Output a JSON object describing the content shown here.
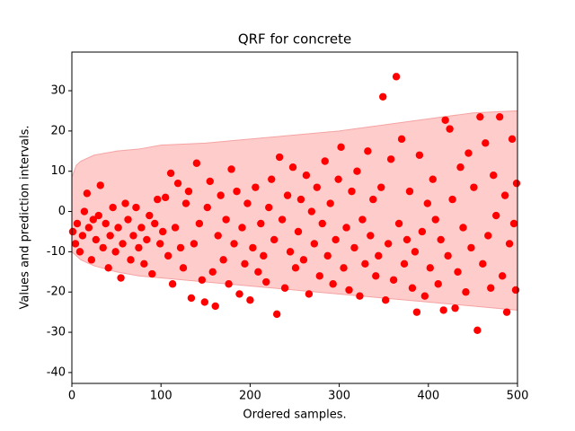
{
  "chart_data": {
    "type": "scatter",
    "title": "QRF for concrete",
    "x_label": "Ordered samples.",
    "y_label": "Values and prediction intervals.",
    "color": "#ff0000",
    "band_color": "#ffcccc",
    "band_edge_color": "#f5a3a3",
    "xlim": [
      0,
      500
    ],
    "xticks": [
      0,
      100,
      200,
      300,
      400,
      500
    ],
    "ylim": [
      -42.7,
      39.6
    ],
    "yticks": [
      -40,
      -30,
      -20,
      -10,
      0,
      10,
      20,
      30
    ],
    "band": {
      "x": [
        0,
        5,
        10,
        25,
        50,
        75,
        100,
        150,
        200,
        250,
        300,
        350,
        400,
        450,
        500
      ],
      "upper": [
        8.5,
        11.5,
        12.5,
        14,
        15,
        15.5,
        16.5,
        17,
        18,
        19,
        20,
        21.5,
        23,
        24.5,
        25
      ],
      "lower": [
        -10,
        -11,
        -12,
        -13.5,
        -15,
        -16,
        -16.5,
        -17.5,
        -18.5,
        -19.5,
        -20.5,
        -21.5,
        -22.5,
        -23.5,
        -24.5
      ]
    },
    "x": [
      1,
      4,
      6,
      9,
      12,
      14,
      17,
      19,
      22,
      24,
      27,
      30,
      32,
      35,
      38,
      41,
      43,
      46,
      49,
      52,
      55,
      57,
      60,
      63,
      66,
      69,
      72,
      75,
      78,
      81,
      84,
      87,
      90,
      93,
      96,
      99,
      102,
      105,
      108,
      111,
      113,
      116,
      119,
      122,
      125,
      128,
      131,
      134,
      137,
      140,
      143,
      146,
      149,
      152,
      155,
      158,
      161,
      164,
      167,
      170,
      173,
      176,
      179,
      182,
      185,
      188,
      191,
      194,
      197,
      200,
      203,
      206,
      209,
      212,
      215,
      218,
      221,
      224,
      227,
      230,
      233,
      236,
      239,
      242,
      245,
      248,
      251,
      254,
      257,
      260,
      263,
      266,
      269,
      272,
      275,
      278,
      281,
      284,
      287,
      290,
      293,
      296,
      299,
      302,
      305,
      308,
      311,
      314,
      317,
      320,
      323,
      326,
      329,
      332,
      335,
      338,
      341,
      344,
      347,
      349,
      352,
      355,
      358,
      361,
      364,
      367,
      370,
      373,
      376,
      379,
      382,
      385,
      387,
      390,
      393,
      396,
      399,
      402,
      405,
      408,
      411,
      414,
      417,
      419,
      422,
      424,
      427,
      430,
      433,
      436,
      439,
      442,
      445,
      448,
      451,
      455,
      458,
      461,
      464,
      467,
      470,
      473,
      476,
      480,
      483,
      486,
      488,
      491,
      494,
      496,
      498,
      499
    ],
    "values": [
      -5,
      -8,
      -3,
      -10,
      -6,
      0,
      4.5,
      -4,
      -12,
      -2,
      -7,
      -1,
      6.5,
      -9,
      -3,
      -14,
      -6,
      1,
      -10,
      -4,
      -16.5,
      -8,
      2,
      -2,
      -12,
      -6,
      1,
      -9,
      -4,
      -13,
      -7,
      -1,
      -15.5,
      -3,
      3,
      -8,
      -5,
      3.5,
      -11,
      9.5,
      -18,
      -4,
      7,
      -9,
      -14,
      2,
      5,
      -21.5,
      -8,
      12,
      -3,
      -17,
      -22.5,
      1,
      7.5,
      -15,
      -23.5,
      -6,
      4,
      -12,
      -2,
      -18,
      10.5,
      -8,
      5,
      -20.5,
      -4,
      -13,
      2,
      -22,
      -9,
      6,
      -15,
      -3,
      -11,
      -17.5,
      1,
      8,
      -7,
      -25.5,
      13.5,
      -2,
      -19,
      4,
      -10,
      11,
      -14,
      -5,
      3,
      -12,
      9,
      -20.5,
      0,
      -8,
      6,
      -16,
      -3,
      12.5,
      -11,
      2,
      -18,
      -7,
      8,
      16,
      -14,
      -4,
      -19.5,
      5,
      -9,
      10,
      -21,
      -2,
      -13,
      15,
      -6,
      3,
      -16,
      -11,
      6,
      28.5,
      -22,
      -8,
      13,
      -17,
      33.5,
      -3,
      18,
      -13,
      -7,
      5,
      -19,
      -10,
      -25,
      14,
      -5,
      -21,
      2,
      -14,
      8,
      -2,
      -18,
      -7,
      -24.5,
      22.7,
      -11,
      20.5,
      3,
      -24,
      -15,
      11,
      -4,
      -20,
      14.5,
      -9,
      6,
      -29.5,
      23.5,
      -13,
      17,
      -6,
      -19,
      9,
      -1,
      23.5,
      -16,
      4,
      -25,
      -8,
      18,
      -3,
      -19.5,
      7
    ]
  }
}
